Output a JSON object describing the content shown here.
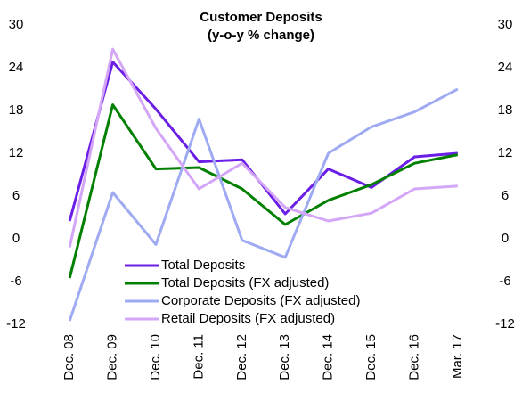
{
  "chart_data": {
    "type": "line",
    "title": "Customer Deposits",
    "subtitle": "(y-o-y % change)",
    "categories": [
      "Dec. 08",
      "Dec. 09",
      "Dec. 10",
      "Dec. 11",
      "Dec. 12",
      "Dec. 13",
      "Dec. 14",
      "Dec. 15",
      "Dec. 16",
      "Mar. 17"
    ],
    "series": [
      {
        "name": "Total Deposits",
        "color": "#6a1ee6",
        "values": [
          2.5,
          24.8,
          18.2,
          10.8,
          11.1,
          3.5,
          9.8,
          7.2,
          11.5,
          12.0
        ]
      },
      {
        "name": "Total Deposits (FX adjusted)",
        "color": "#008000",
        "values": [
          -5.5,
          18.8,
          9.8,
          10.0,
          7.0,
          2.0,
          5.4,
          7.6,
          10.6,
          11.8
        ]
      },
      {
        "name": "Corporate Deposits (FX adjusted)",
        "color": "#9eaaf2",
        "values": [
          -11.5,
          6.5,
          -0.8,
          16.8,
          -0.2,
          -2.6,
          12.0,
          15.7,
          17.8,
          21.0
        ]
      },
      {
        "name": "Retail Deposits (FX adjusted)",
        "color": "#d3a6f7",
        "values": [
          -1.2,
          26.6,
          15.5,
          7.0,
          10.6,
          4.4,
          2.5,
          3.6,
          7.0,
          7.4
        ]
      }
    ],
    "ylim": [
      -12,
      30
    ],
    "yticks": [
      -12,
      -6,
      0,
      6,
      12,
      18,
      24,
      30
    ],
    "y2lim": [
      -12,
      30
    ],
    "y2ticks": [
      -12,
      -6,
      0,
      6,
      12,
      18,
      24,
      30
    ],
    "grid": false
  }
}
